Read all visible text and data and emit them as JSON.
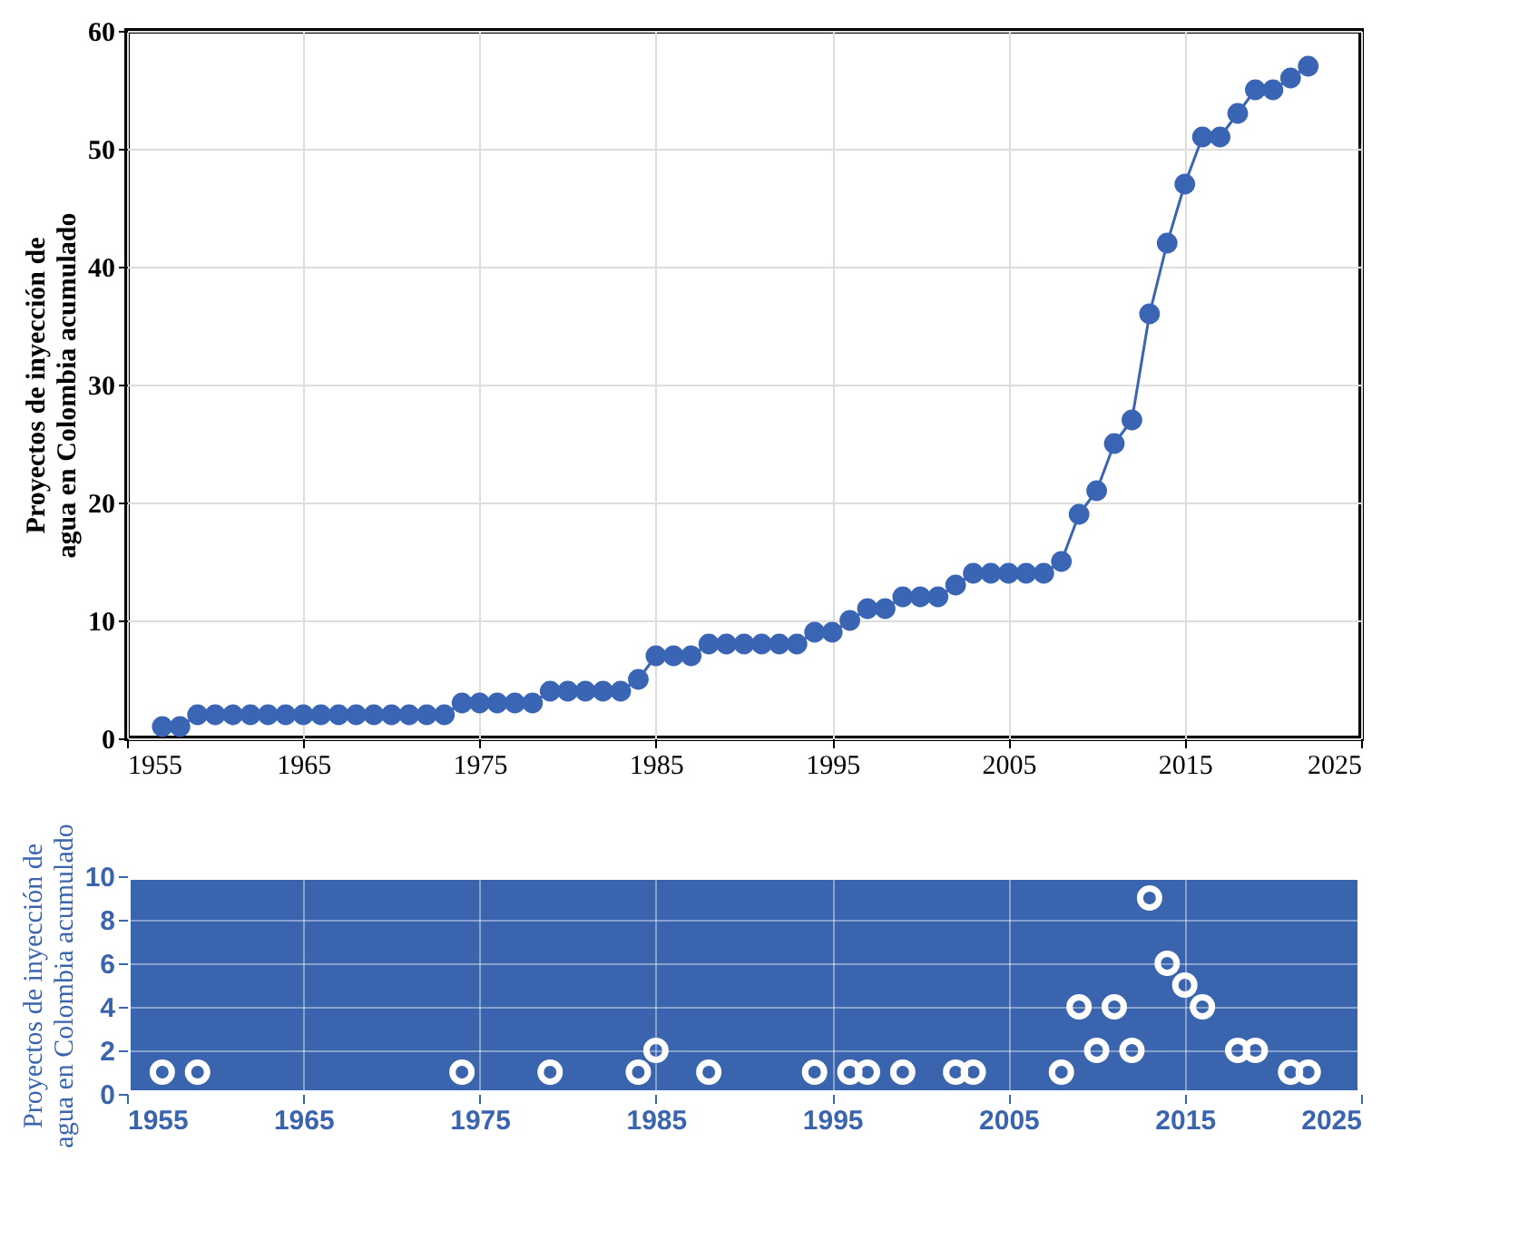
{
  "chart_data": [
    {
      "type": "line",
      "ylabel": "Proyectos de inyección de\nagua en Colombia acumulado",
      "marker": "circle",
      "grid": true,
      "line_style": "solid",
      "x": [
        1957,
        1958,
        1959,
        1960,
        1961,
        1962,
        1963,
        1964,
        1965,
        1966,
        1967,
        1968,
        1969,
        1970,
        1971,
        1972,
        1973,
        1974,
        1975,
        1976,
        1977,
        1978,
        1979,
        1980,
        1981,
        1982,
        1983,
        1984,
        1985,
        1986,
        1987,
        1988,
        1989,
        1990,
        1991,
        1992,
        1993,
        1994,
        1995,
        1996,
        1997,
        1998,
        1999,
        2000,
        2001,
        2002,
        2003,
        2004,
        2005,
        2006,
        2007,
        2008,
        2009,
        2010,
        2011,
        2012,
        2013,
        2014,
        2015,
        2016,
        2017,
        2018,
        2019,
        2020,
        2021,
        2022
      ],
      "series": [
        {
          "color": "#3a65b5",
          "values": [
            1,
            1,
            2,
            2,
            2,
            2,
            2,
            2,
            2,
            2,
            2,
            2,
            2,
            2,
            2,
            2,
            2,
            3,
            3,
            3,
            3,
            3,
            4,
            4,
            4,
            4,
            4,
            5,
            7,
            7,
            7,
            8,
            8,
            8,
            8,
            8,
            8,
            9,
            9,
            10,
            11,
            11,
            12,
            12,
            12,
            13,
            14,
            14,
            14,
            14,
            14,
            15,
            19,
            21,
            25,
            27,
            36,
            42,
            47,
            51,
            51,
            53,
            55,
            55,
            56,
            57
          ]
        }
      ],
      "xlim": [
        1955,
        2025
      ],
      "xticks": [
        1955,
        1965,
        1975,
        1985,
        1995,
        2005,
        2015,
        2025
      ],
      "ylim": [
        0,
        60
      ],
      "yticks": [
        0,
        10,
        20,
        30,
        40,
        50,
        60
      ]
    },
    {
      "type": "scatter",
      "ylabel": "Proyectos de inyección de\nagua en Colombia acumulado",
      "marker": "circle",
      "grid": true,
      "x": [
        1957,
        1959,
        1974,
        1979,
        1984,
        1985,
        1988,
        1994,
        1996,
        1997,
        1999,
        2002,
        2003,
        2008,
        2009,
        2010,
        2011,
        2012,
        2013,
        2014,
        2015,
        2016,
        2018,
        2019,
        2021,
        2022
      ],
      "series": [
        {
          "color": "#ffffff",
          "values": [
            1,
            1,
            1,
            1,
            1,
            2,
            1,
            1,
            1,
            1,
            1,
            1,
            1,
            1,
            4,
            2,
            4,
            2,
            9,
            6,
            5,
            4,
            2,
            2,
            1,
            1
          ]
        }
      ],
      "xlim": [
        1955,
        2025
      ],
      "xticks": [
        1955,
        1965,
        1975,
        1985,
        1995,
        2005,
        2015,
        2025
      ],
      "ylim": [
        0,
        10
      ],
      "yticks": [
        0,
        2,
        4,
        6,
        8,
        10
      ]
    }
  ]
}
